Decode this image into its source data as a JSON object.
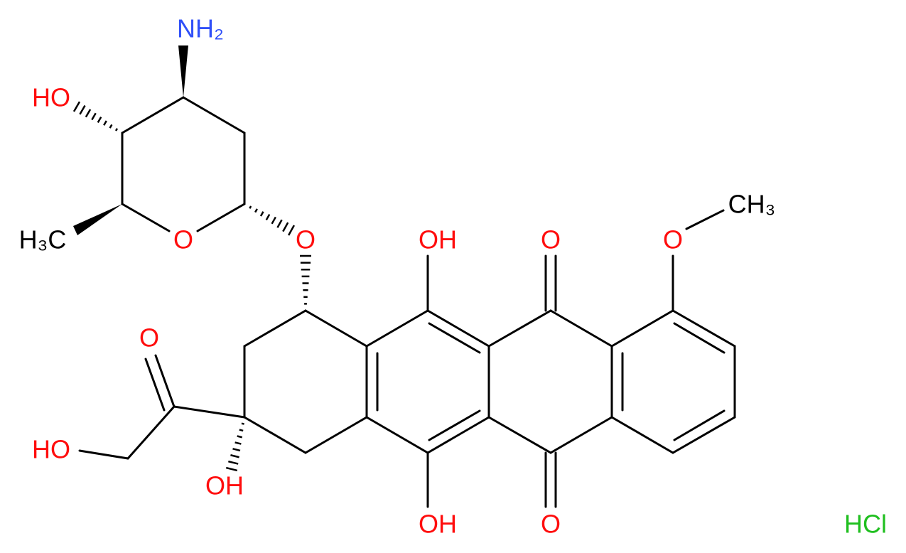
{
  "atoms": [
    {
      "label": "NH₂"
    },
    {
      "label": "HO"
    },
    {
      "label": "H₃C"
    },
    {
      "label": "O"
    },
    {
      "label": "O"
    },
    {
      "label": "OH"
    },
    {
      "label": "O"
    },
    {
      "label": "O"
    },
    {
      "label": "CH₃"
    },
    {
      "label": "O"
    },
    {
      "label": "HO"
    },
    {
      "label": "OH"
    },
    {
      "label": "OH"
    },
    {
      "label": "O"
    }
  ],
  "salt": "HCl"
}
